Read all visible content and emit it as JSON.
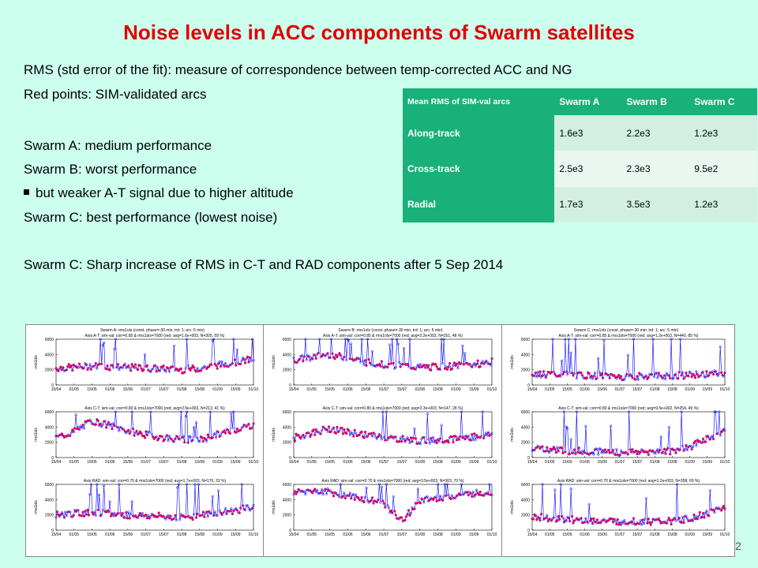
{
  "title": "Noise levels in ACC components of Swarm satellites",
  "text_lines": [
    "RMS (std error of the fit): measure of correspondence between temp-corrected ACC and NG",
    "Red points: SIM-validated arcs",
    "Swarm A: medium performance",
    "Swarm B: worst performance",
    "but weaker A-T signal due to higher altitude",
    "Swarm C: best performance (lowest noise)",
    "Swarm C: Sharp increase of RMS in C-T and RAD components after 5 Sep 2014"
  ],
  "table": {
    "corner": "Mean RMS of SIM-val arcs",
    "columns": [
      "Swarm A",
      "Swarm B",
      "Swarm C"
    ],
    "rows": [
      {
        "label": "Along-track",
        "values": [
          "1.6e3",
          "2.2e3",
          "1.2e3"
        ]
      },
      {
        "label": "Cross-track",
        "values": [
          "2.5e3",
          "2.3e3",
          "9.5e2"
        ]
      },
      {
        "label": "Radial",
        "values": [
          "1.7e3",
          "3.5e3",
          "1.2e3"
        ]
      }
    ]
  },
  "colors": {
    "background": "#ccffee",
    "title": "#e00000",
    "table_header": "#19b07a",
    "series_all": "#0000ff",
    "series_simval": "#e0005a"
  },
  "chart_data": [
    {
      "type": "scatter",
      "title": "Swarm A: rms1ols (const. phase=-30 min; trd: 1; arc: 5 min)",
      "subplots": [
        {
          "title": "Axis A-T: sim-val: corr=0.85 & rms1ols=7000 (red; avg=1.6e+003, N=305, 59 %)",
          "ylabel": "rms1ols",
          "ylim": [
            0,
            6000
          ],
          "yticks": [
            "0",
            "2000",
            "4000",
            "6000"
          ],
          "xticks": [
            "15/04",
            "01/05",
            "15/05",
            "01/06",
            "15/06",
            "01/07",
            "15/07",
            "01/08",
            "15/08",
            "01/09",
            "15/09",
            "01/10"
          ],
          "base": [
            2200,
            2300,
            2500,
            2400,
            2300,
            2200,
            2100,
            2000,
            2200,
            2600,
            3000,
            3400
          ]
        },
        {
          "title": "Axis C-T: sim-val: corr=0.80 & rms1ols=7000 (red; avg=2.5e+003, N=213, 41 %)",
          "ylabel": "rms1ols",
          "ylim": [
            0,
            6000
          ],
          "yticks": [
            "0",
            "2000",
            "4000",
            "6000"
          ],
          "xticks": [
            "15/04",
            "01/05",
            "15/05",
            "01/06",
            "15/06",
            "01/07",
            "15/07",
            "01/08",
            "15/08",
            "01/09",
            "15/09",
            "01/10"
          ],
          "base": [
            2600,
            3400,
            4800,
            4200,
            3500,
            3000,
            2600,
            2400,
            2300,
            3000,
            3700,
            4300
          ]
        },
        {
          "title": "Axis RAD: sim-val: corr=0.70 & rms1ols=7000 (red; avg=1.7e+003, N=170, 33 %)",
          "ylabel": "rms1ols",
          "ylim": [
            0,
            6000
          ],
          "yticks": [
            "0",
            "2000",
            "4000",
            "6000"
          ],
          "xticks": [
            "15/04",
            "01/05",
            "15/05",
            "01/06",
            "15/06",
            "01/07",
            "15/07",
            "01/08",
            "15/08",
            "01/09",
            "15/09",
            "01/10"
          ],
          "base": [
            2000,
            2200,
            2300,
            2100,
            2000,
            1900,
            1800,
            1700,
            1900,
            2300,
            2600,
            3000
          ]
        }
      ]
    },
    {
      "type": "scatter",
      "title": "Swarm B: rms1ols (const. phase=-30 min; trd: 1; arc: 5 min)",
      "subplots": [
        {
          "title": "Axis A-T: sim-val: corr=0.85 & rms1ols=7000 (red; avg=2.2e+003, N=251, 48 %)",
          "ylabel": "rms1ols",
          "ylim": [
            0,
            6000
          ],
          "yticks": [
            "0",
            "2000",
            "4000",
            "6000"
          ],
          "xticks": [
            "15/04",
            "01/05",
            "15/05",
            "01/06",
            "15/06",
            "01/07",
            "15/07",
            "01/08",
            "15/08",
            "01/09",
            "15/09",
            "01/10"
          ],
          "base": [
            3200,
            3700,
            4000,
            3500,
            3000,
            2700,
            2500,
            2300,
            2400,
            2500,
            2700,
            3000
          ]
        },
        {
          "title": "Axis C-T: sim-val: corr=0.80 & rms1ols=7000 (red; avg=2.3e+003, N=147, 28 %)",
          "ylabel": "rms1ols",
          "ylim": [
            0,
            6000
          ],
          "yticks": [
            "0",
            "2000",
            "4000",
            "6000"
          ],
          "xticks": [
            "15/04",
            "01/05",
            "15/05",
            "01/06",
            "15/06",
            "01/07",
            "15/07",
            "01/08",
            "15/08",
            "01/09",
            "15/09",
            "01/10"
          ],
          "base": [
            2600,
            3200,
            3800,
            3300,
            3000,
            2600,
            2400,
            2200,
            2300,
            2500,
            2700,
            3000
          ]
        },
        {
          "title": "Axis RAD: sim-val: corr=0.70 & rms1ols=7000 (red; avg=3.5e+003, N=363, 70 %)",
          "ylabel": "rms1ols",
          "ylim": [
            0,
            6000
          ],
          "yticks": [
            "0",
            "2000",
            "4000",
            "6000"
          ],
          "xticks": [
            "15/04",
            "01/05",
            "15/05",
            "01/06",
            "15/06",
            "01/07",
            "15/07",
            "01/08",
            "15/08",
            "01/09",
            "15/09",
            "01/10"
          ],
          "base": [
            5000,
            5200,
            5000,
            4500,
            4000,
            3500,
            1200,
            3800,
            4200,
            4500,
            4800,
            5000
          ]
        }
      ]
    },
    {
      "type": "scatter",
      "title": "Swarm C: rms1ols (const. phase=-30 min; trd: 1; arc: 5 min)",
      "subplots": [
        {
          "title": "Axis A-T: sim-val: corr=0.85 & rms1ols=7000 (red; avg=1.2e+003, N=440, 85 %)",
          "ylabel": "rms1ols",
          "ylim": [
            0,
            6000
          ],
          "yticks": [
            "0",
            "2000",
            "4000",
            "6000"
          ],
          "xticks": [
            "15/04",
            "01/05",
            "15/05",
            "01/06",
            "15/06",
            "01/07",
            "15/07",
            "01/08",
            "15/08",
            "01/09",
            "15/09",
            "01/10"
          ],
          "base": [
            1500,
            1400,
            1300,
            1200,
            1200,
            1100,
            1100,
            1200,
            1200,
            1300,
            1400,
            1500
          ]
        },
        {
          "title": "Axis C-T: sim-val: corr=0.80 & rms1ols=7000 (red; avg=9.5e+002, N=254, 49 %)",
          "ylabel": "rms1ols",
          "ylim": [
            0,
            6000
          ],
          "yticks": [
            "0",
            "2000",
            "4000",
            "6000"
          ],
          "xticks": [
            "15/04",
            "01/05",
            "15/05",
            "01/06",
            "15/06",
            "01/07",
            "15/07",
            "01/08",
            "15/08",
            "01/09",
            "15/09",
            "01/10"
          ],
          "base": [
            1200,
            1100,
            900,
            800,
            800,
            700,
            700,
            800,
            900,
            1400,
            2500,
            3500
          ]
        },
        {
          "title": "Axis RAD: sim-val: corr=0.70 & rms1ols=7000 (red; avg=1.2e+003, N=358, 69 %)",
          "ylabel": "rms1ols",
          "ylim": [
            0,
            6000
          ],
          "yticks": [
            "0",
            "2000",
            "4000",
            "6000"
          ],
          "xticks": [
            "15/04",
            "01/05",
            "15/05",
            "01/06",
            "15/06",
            "01/07",
            "15/07",
            "01/08",
            "15/08",
            "01/09",
            "15/09",
            "01/10"
          ],
          "base": [
            1800,
            1600,
            1400,
            1300,
            1200,
            1100,
            1100,
            1100,
            1200,
            1500,
            2200,
            3000
          ]
        }
      ]
    }
  ],
  "slide_number": "2"
}
